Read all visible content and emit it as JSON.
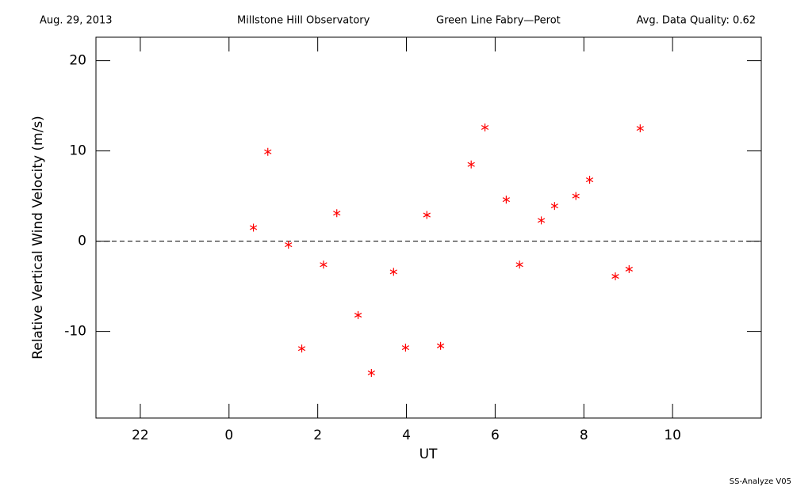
{
  "chart_data": {
    "type": "scatter",
    "header": [
      "Aug. 29, 2013",
      "Millstone Hill Observatory",
      "Green Line Fabry—Perot",
      "Avg. Data Quality: 0.62"
    ],
    "footer": "SS-Analyze V05",
    "x_label": "UT",
    "y_label": "Relative Vertical Wind Velocity (m/s)",
    "series": [
      {
        "name": "Vertical wind",
        "color": "#ff0000",
        "x": [
          0.55,
          0.875,
          1.34,
          1.64,
          2.13,
          2.43,
          2.91,
          3.21,
          3.71,
          3.98,
          4.46,
          4.77,
          5.46,
          5.77,
          6.25,
          6.55,
          7.04,
          7.34,
          7.82,
          8.13,
          8.71,
          9.02,
          9.27
        ],
        "values": [
          1.5,
          9.9,
          -0.4,
          -11.9,
          -2.6,
          3.1,
          -8.2,
          -14.6,
          -3.4,
          -11.8,
          2.9,
          -11.6,
          8.5,
          12.6,
          4.6,
          -2.6,
          2.3,
          3.9,
          5.0,
          6.8,
          -3.9,
          -3.1,
          12.5
        ]
      }
    ],
    "xlim": [
      -3,
      12
    ],
    "xticks": [
      {
        "value": -2,
        "label": "22"
      },
      0,
      2,
      4,
      6,
      8,
      10
    ],
    "ylim": [
      -19.6,
      22.6
    ],
    "yticks": [
      -10,
      0,
      10,
      20
    ],
    "reference_line": 0
  }
}
